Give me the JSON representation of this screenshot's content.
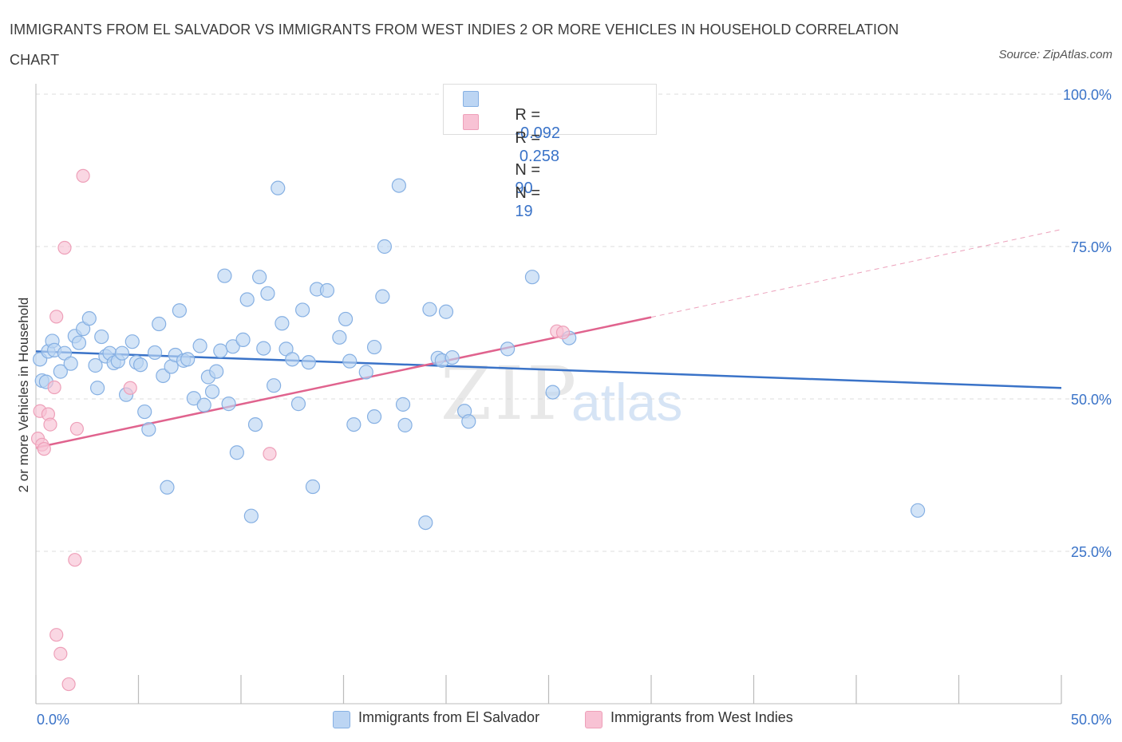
{
  "header": {
    "title": "IMMIGRANTS FROM EL SALVADOR VS IMMIGRANTS FROM WEST INDIES 2 OR MORE VEHICLES IN HOUSEHOLD CORRELATION CHART",
    "source": "Source: ZipAtlas.com"
  },
  "colors": {
    "blue": "#3a73c8",
    "blue_fill": "#bcd5f3",
    "blue_stroke": "#86b0e3",
    "pink": "#e0638e",
    "pink_fill": "#f8c2d4",
    "pink_stroke": "#eea0b9"
  },
  "legend": {
    "rows": [
      {
        "r_label": "R =",
        "r_value": "-0.092",
        "n_label": "N =",
        "n_value": "90"
      },
      {
        "r_label": "R =",
        "r_value": " 0.258",
        "n_label": "N =",
        "n_value": "19"
      }
    ]
  },
  "bottom_legend": {
    "series1": "Immigrants from El Salvador",
    "series2": "Immigrants from West Indies"
  },
  "watermark": {
    "zip": "ZIP",
    "atlas": "atlas"
  },
  "chart_data": {
    "type": "scatter",
    "title": "IMMIGRANTS FROM EL SALVADOR VS IMMIGRANTS FROM WEST INDIES 2 OR MORE VEHICLES IN HOUSEHOLD CORRELATION CHART",
    "xlabel": "",
    "ylabel": "2 or more Vehicles in Household",
    "xlim": [
      0,
      50
    ],
    "ylim": [
      0,
      100
    ],
    "x_tick_labels": [
      {
        "value": 0,
        "label": "0.0%"
      },
      {
        "value": 50,
        "label": "50.0%"
      }
    ],
    "y_tick_labels": [
      {
        "value": 100,
        "label": "100.0%"
      },
      {
        "value": 75,
        "label": "75.0%"
      },
      {
        "value": 50,
        "label": "50.0%"
      },
      {
        "value": 25,
        "label": "25.0%"
      }
    ],
    "series": [
      {
        "name": "Immigrants from El Salvador",
        "color": "#3a73c8",
        "trend": {
          "x0": 0,
          "y0": 57.8,
          "x1": 50,
          "y1": 51.8
        },
        "points": [
          [
            0.2,
            56.5
          ],
          [
            0.3,
            53.0
          ],
          [
            0.6,
            57.8
          ],
          [
            0.8,
            59.5
          ],
          [
            0.9,
            58.0
          ],
          [
            1.2,
            54.5
          ],
          [
            1.4,
            57.5
          ],
          [
            1.7,
            55.8
          ],
          [
            1.9,
            60.3
          ],
          [
            2.1,
            59.2
          ],
          [
            2.3,
            61.5
          ],
          [
            2.6,
            63.2
          ],
          [
            2.9,
            55.5
          ],
          [
            3.0,
            51.8
          ],
          [
            3.2,
            60.2
          ],
          [
            3.4,
            57.0
          ],
          [
            3.6,
            57.5
          ],
          [
            3.8,
            55.9
          ],
          [
            4.0,
            56.2
          ],
          [
            4.2,
            57.5
          ],
          [
            4.4,
            50.7
          ],
          [
            4.7,
            59.4
          ],
          [
            4.9,
            56.0
          ],
          [
            5.1,
            55.6
          ],
          [
            5.3,
            47.9
          ],
          [
            5.5,
            45.0
          ],
          [
            5.8,
            57.6
          ],
          [
            6.0,
            62.3
          ],
          [
            6.2,
            53.8
          ],
          [
            6.4,
            35.5
          ],
          [
            6.6,
            55.3
          ],
          [
            6.8,
            57.2
          ],
          [
            7.0,
            64.5
          ],
          [
            7.2,
            56.3
          ],
          [
            7.4,
            56.5
          ],
          [
            7.7,
            50.1
          ],
          [
            8.0,
            58.7
          ],
          [
            8.2,
            49.0
          ],
          [
            8.4,
            53.6
          ],
          [
            8.6,
            51.2
          ],
          [
            8.8,
            54.5
          ],
          [
            9.0,
            57.9
          ],
          [
            9.2,
            70.2
          ],
          [
            9.4,
            49.2
          ],
          [
            9.6,
            58.6
          ],
          [
            9.8,
            41.2
          ],
          [
            10.1,
            59.7
          ],
          [
            10.3,
            66.3
          ],
          [
            10.5,
            30.8
          ],
          [
            10.7,
            45.8
          ],
          [
            10.9,
            70.0
          ],
          [
            11.1,
            58.3
          ],
          [
            11.3,
            67.3
          ],
          [
            11.6,
            52.2
          ],
          [
            11.8,
            84.6
          ],
          [
            12.0,
            62.4
          ],
          [
            12.2,
            58.2
          ],
          [
            12.5,
            56.5
          ],
          [
            12.8,
            49.2
          ],
          [
            13.0,
            64.6
          ],
          [
            13.3,
            56.0
          ],
          [
            13.5,
            35.6
          ],
          [
            13.7,
            68.0
          ],
          [
            14.2,
            67.8
          ],
          [
            14.8,
            60.1
          ],
          [
            15.1,
            63.1
          ],
          [
            15.3,
            56.2
          ],
          [
            15.5,
            45.8
          ],
          [
            16.1,
            54.4
          ],
          [
            16.5,
            58.5
          ],
          [
            16.5,
            47.1
          ],
          [
            16.9,
            66.8
          ],
          [
            17.0,
            75.0
          ],
          [
            17.7,
            85.0
          ],
          [
            17.9,
            49.1
          ],
          [
            18.0,
            45.7
          ],
          [
            19.0,
            29.7
          ],
          [
            19.2,
            64.7
          ],
          [
            19.6,
            56.7
          ],
          [
            19.8,
            56.3
          ],
          [
            20.0,
            64.3
          ],
          [
            20.3,
            56.8
          ],
          [
            20.9,
            48.0
          ],
          [
            21.1,
            46.3
          ],
          [
            23.0,
            58.2
          ],
          [
            24.2,
            70.0
          ],
          [
            25.2,
            51.1
          ],
          [
            26.0,
            60.0
          ],
          [
            43.0,
            31.7
          ],
          [
            0.5,
            52.8
          ]
        ]
      },
      {
        "name": "Immigrants from West Indies",
        "color": "#e0638e",
        "trend": {
          "x0": 0,
          "y0": 42.0,
          "x1": 30,
          "y1": 63.4
        },
        "trend_dashed_extension": {
          "x0": 30,
          "y0": 63.4,
          "x1": 50,
          "y1": 77.8
        },
        "points": [
          [
            0.1,
            43.5
          ],
          [
            0.2,
            48.0
          ],
          [
            0.3,
            42.5
          ],
          [
            0.4,
            41.8
          ],
          [
            0.6,
            47.5
          ],
          [
            0.7,
            45.8
          ],
          [
            0.9,
            51.9
          ],
          [
            1.0,
            63.5
          ],
          [
            1.0,
            11.3
          ],
          [
            1.2,
            8.2
          ],
          [
            1.4,
            74.8
          ],
          [
            1.6,
            3.2
          ],
          [
            1.9,
            23.6
          ],
          [
            2.0,
            45.1
          ],
          [
            2.3,
            86.6
          ],
          [
            4.6,
            51.8
          ],
          [
            11.4,
            41.0
          ],
          [
            25.4,
            61.1
          ],
          [
            25.7,
            60.9
          ]
        ]
      }
    ]
  }
}
